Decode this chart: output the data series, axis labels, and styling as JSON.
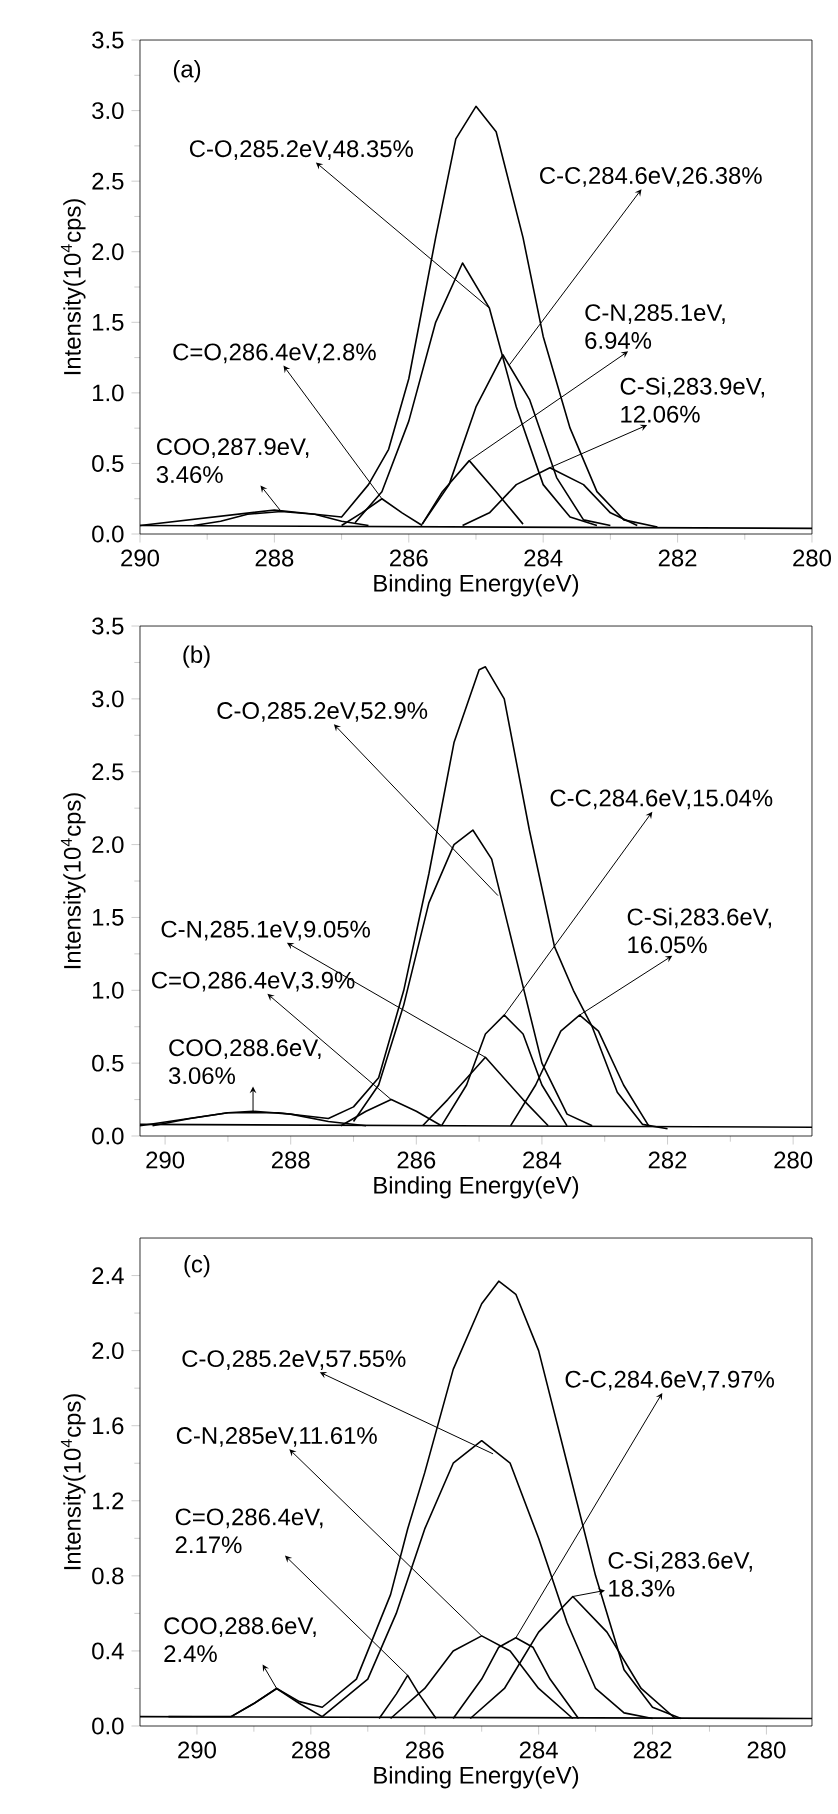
{
  "chart_data": [
    {
      "type": "line",
      "xlabel": "Binding Energy(eV)",
      "ylabel": "Intensity(10$^{4}$cps)",
      "xlim": [
        290,
        280
      ],
      "ylim": [
        0,
        3.5
      ],
      "xticks": [
        290,
        288,
        286,
        284,
        282,
        280
      ],
      "yticks": [
        {
          "value": 0,
          "label": "0.0"
        },
        {
          "value": 0.5,
          "label": "0.5"
        },
        {
          "value": 1,
          "label": "1.0"
        },
        {
          "value": 1.5,
          "label": "1.5"
        },
        {
          "value": 2,
          "label": "2.0"
        },
        {
          "value": 2.5,
          "label": "2.5"
        },
        {
          "value": 3,
          "label": "3.0"
        },
        {
          "value": 3.5,
          "label": "3.5"
        }
      ],
      "series": [
        {
          "color": "#000000",
          "x": [
            290,
            280
          ],
          "values": [
            0.06,
            0.04
          ]
        },
        {
          "color": "#000000",
          "x": [
            289.2,
            288.8,
            288.4,
            287.9,
            287.4,
            287.0,
            286.6
          ],
          "values": [
            0.06,
            0.09,
            0.14,
            0.16,
            0.14,
            0.09,
            0.06
          ]
        },
        {
          "color": "#000000",
          "x": [
            287.0,
            286.7,
            286.4,
            286.1,
            285.8
          ],
          "values": [
            0.06,
            0.15,
            0.25,
            0.15,
            0.06
          ]
        },
        {
          "color": "#000000",
          "x": [
            286.8,
            286.4,
            286.0,
            285.6,
            285.2,
            284.8,
            284.4,
            284.0,
            283.6,
            283.2
          ],
          "values": [
            0.08,
            0.3,
            0.8,
            1.5,
            1.92,
            1.6,
            0.9,
            0.35,
            0.12,
            0.06
          ]
        },
        {
          "color": "#000000",
          "x": [
            285.8,
            285.5,
            285.1,
            284.7,
            284.3
          ],
          "values": [
            0.07,
            0.3,
            0.52,
            0.3,
            0.07
          ]
        },
        {
          "color": "#000000",
          "x": [
            285.8,
            285.4,
            285.0,
            284.6,
            284.2,
            283.8,
            283.4,
            283.0
          ],
          "values": [
            0.07,
            0.35,
            0.9,
            1.27,
            0.95,
            0.4,
            0.1,
            0.06
          ]
        },
        {
          "color": "#000000",
          "x": [
            285.2,
            284.8,
            284.4,
            283.9,
            283.4,
            283.0,
            282.6
          ],
          "values": [
            0.06,
            0.15,
            0.35,
            0.47,
            0.35,
            0.15,
            0.06
          ]
        },
        {
          "color": "#000000",
          "x": [
            290,
            288.0,
            287.0,
            286.6,
            286.3,
            286.0,
            285.6,
            285.3,
            285.0,
            284.7,
            284.3,
            284.0,
            283.6,
            283.2,
            282.8,
            282.3
          ],
          "values": [
            0.06,
            0.17,
            0.12,
            0.35,
            0.6,
            1.1,
            2.1,
            2.8,
            3.03,
            2.85,
            2.1,
            1.4,
            0.75,
            0.3,
            0.1,
            0.05
          ]
        }
      ],
      "annotations": [
        "(a)",
        {
          "text": "C-O,285.2eV,48.35%",
          "x": 284.8,
          "y": 1.6
        },
        {
          "text": "C-C,284.6eV,26.38%",
          "x": 284.5,
          "y": 1.2
        },
        {
          "text": "C-N,285.1eV, 6.94%",
          "x": 285.1,
          "y": 0.52
        },
        {
          "text": "C-Si,283.9eV, 12.06%",
          "x": 283.9,
          "y": 0.47
        },
        {
          "text": "C=O,286.4eV,2.8%",
          "x": 286.4,
          "y": 0.25
        },
        {
          "text": "COO,287.9eV, 3.46%",
          "x": 287.9,
          "y": 0.16
        }
      ]
    },
    {
      "type": "line",
      "xlabel": "Binding Energy(eV)",
      "ylabel": "Intensity(10$^{4}$cps)",
      "xlim": [
        290.4,
        279.7
      ],
      "ylim": [
        0,
        3.5
      ],
      "xticks": [
        290,
        288,
        286,
        284,
        282,
        280
      ],
      "yticks": [
        {
          "value": 0,
          "label": "0.0"
        },
        {
          "value": 0.5,
          "label": "0.5"
        },
        {
          "value": 1,
          "label": "1.0"
        },
        {
          "value": 1.5,
          "label": "1.5"
        },
        {
          "value": 2,
          "label": "2.0"
        },
        {
          "value": 2.5,
          "label": "2.5"
        },
        {
          "value": 3,
          "label": "3.0"
        },
        {
          "value": 3.5,
          "label": "3.5"
        }
      ],
      "series": [
        {
          "color": "#000000",
          "x": [
            290.4,
            279.7
          ],
          "values": [
            0.08,
            0.06
          ]
        },
        {
          "color": "#000000",
          "x": [
            290.2,
            289.6,
            289.0,
            288.6,
            288.0,
            287.4,
            286.8
          ],
          "values": [
            0.07,
            0.12,
            0.16,
            0.17,
            0.15,
            0.1,
            0.07
          ]
        },
        {
          "color": "#000000",
          "x": [
            287.2,
            286.8,
            286.4,
            286.0,
            285.6
          ],
          "values": [
            0.07,
            0.17,
            0.25,
            0.17,
            0.07
          ]
        },
        {
          "color": "#000000",
          "x": [
            287.0,
            286.6,
            286.2,
            285.8,
            285.4,
            285.1,
            284.8,
            284.4,
            284.0,
            283.6,
            283.2
          ],
          "values": [
            0.1,
            0.35,
            0.9,
            1.6,
            2.0,
            2.1,
            1.9,
            1.2,
            0.5,
            0.15,
            0.07
          ]
        },
        {
          "color": "#000000",
          "x": [
            285.9,
            285.5,
            284.9,
            284.3,
            283.9
          ],
          "values": [
            0.07,
            0.25,
            0.54,
            0.25,
            0.07
          ]
        },
        {
          "color": "#000000",
          "x": [
            285.6,
            285.2,
            284.9,
            284.6,
            284.3,
            284.0,
            283.6
          ],
          "values": [
            0.07,
            0.35,
            0.7,
            0.83,
            0.7,
            0.35,
            0.07
          ]
        },
        {
          "color": "#000000",
          "x": [
            284.5,
            284.1,
            283.7,
            283.4,
            283.1,
            282.7,
            282.3
          ],
          "values": [
            0.07,
            0.35,
            0.72,
            0.83,
            0.72,
            0.35,
            0.07
          ]
        },
        {
          "color": "#000000",
          "x": [
            290.4,
            289.0,
            288.2,
            287.4,
            287.0,
            286.6,
            286.2,
            285.8,
            285.4,
            285.0,
            284.9,
            284.6,
            284.2,
            283.8,
            283.5,
            283.2,
            282.8,
            282.4,
            282.0
          ],
          "values": [
            0.07,
            0.16,
            0.16,
            0.12,
            0.2,
            0.4,
            1.0,
            1.8,
            2.7,
            3.2,
            3.22,
            3.0,
            2.1,
            1.3,
            1.0,
            0.75,
            0.3,
            0.08,
            0.05
          ]
        }
      ],
      "annotations": [
        "(b)",
        {
          "text": "C-O,285.2eV,52.9%",
          "x": 284.7,
          "y": 1.65
        },
        {
          "text": "C-C,284.6eV,15.04%",
          "x": 284.6,
          "y": 0.83
        },
        {
          "text": "C-Si,283.6eV, 16.05%",
          "x": 283.4,
          "y": 0.83
        },
        {
          "text": "C-N,285.1eV,9.05%",
          "x": 284.9,
          "y": 0.54
        },
        {
          "text": "C=O,286.4eV,3.9%",
          "x": 286.4,
          "y": 0.25
        },
        {
          "text": "COO,288.6eV, 3.06%",
          "x": 288.6,
          "y": 0.17
        }
      ]
    },
    {
      "type": "line",
      "xlabel": "Binding Energy(eV)",
      "ylabel": "Intensity(10$^{4}$cps)",
      "xlim": [
        291.0,
        279.2
      ],
      "ylim": [
        0,
        2.6
      ],
      "xticks": [
        290,
        288,
        286,
        284,
        282,
        280
      ],
      "yticks": [
        {
          "value": 0,
          "label": "0.0"
        },
        {
          "value": 0.4,
          "label": "0.4"
        },
        {
          "value": 0.8,
          "label": "0.8"
        },
        {
          "value": 1.2,
          "label": "1.2"
        },
        {
          "value": 1.6,
          "label": "1.6"
        },
        {
          "value": 2,
          "label": "2.0"
        },
        {
          "value": 2.4,
          "label": "2.4"
        }
      ],
      "series": [
        {
          "color": "#000000",
          "x": [
            291.0,
            279.2
          ],
          "values": [
            0.05,
            0.04
          ]
        },
        {
          "color": "#000000",
          "x": [
            289.4,
            289.0,
            288.6,
            288.2,
            287.8
          ],
          "values": [
            0.05,
            0.12,
            0.2,
            0.12,
            0.05
          ]
        },
        {
          "color": "#000000",
          "x": [
            286.8,
            286.5,
            286.3,
            286.1,
            285.8
          ],
          "values": [
            0.04,
            0.17,
            0.27,
            0.17,
            0.04
          ]
        },
        {
          "color": "#000000",
          "x": [
            287.8,
            287.0,
            286.5,
            286.0,
            285.5,
            285.0,
            284.5,
            284.0,
            283.5,
            283.0,
            282.5,
            282.0
          ],
          "values": [
            0.05,
            0.25,
            0.6,
            1.05,
            1.4,
            1.52,
            1.4,
            1.0,
            0.55,
            0.2,
            0.07,
            0.04
          ]
        },
        {
          "color": "#000000",
          "x": [
            286.6,
            286.0,
            285.5,
            285.0,
            284.5,
            284.0,
            283.4
          ],
          "values": [
            0.04,
            0.2,
            0.4,
            0.48,
            0.4,
            0.2,
            0.04
          ]
        },
        {
          "color": "#000000",
          "x": [
            285.5,
            285.0,
            284.7,
            284.4,
            284.1,
            283.8,
            283.3
          ],
          "values": [
            0.04,
            0.25,
            0.42,
            0.47,
            0.42,
            0.25,
            0.04
          ]
        },
        {
          "color": "#000000",
          "x": [
            285.2,
            284.6,
            284.0,
            283.4,
            282.8,
            282.2,
            281.6
          ],
          "values": [
            0.04,
            0.2,
            0.5,
            0.69,
            0.5,
            0.2,
            0.04
          ]
        },
        {
          "color": "#000000",
          "x": [
            290.5,
            289.4,
            289.0,
            288.6,
            288.2,
            287.8,
            287.2,
            286.6,
            286.3,
            286.0,
            285.5,
            285.0,
            284.7,
            284.4,
            284.0,
            283.5,
            283.0,
            282.5,
            282.0,
            281.5
          ],
          "values": [
            0.05,
            0.05,
            0.12,
            0.2,
            0.13,
            0.1,
            0.25,
            0.7,
            1.05,
            1.35,
            1.9,
            2.25,
            2.37,
            2.3,
            2.0,
            1.4,
            0.8,
            0.3,
            0.1,
            0.04
          ]
        }
      ],
      "annotations": [
        "(c)",
        {
          "text": "C-O,285.2eV,57.55%",
          "x": 284.8,
          "y": 1.45
        },
        {
          "text": "C-N,285eV,11.61%",
          "x": 285.0,
          "y": 0.48
        },
        {
          "text": "C-C,284.6eV,7.97%",
          "x": 284.4,
          "y": 0.47
        },
        {
          "text": "C=O,286.4eV, 2.17%",
          "x": 286.3,
          "y": 0.27
        },
        {
          "text": "C-Si,283.6eV, 18.3%",
          "x": 283.4,
          "y": 0.69
        },
        {
          "text": "COO,288.6eV, 2.4%",
          "x": 288.6,
          "y": 0.2
        }
      ]
    }
  ]
}
